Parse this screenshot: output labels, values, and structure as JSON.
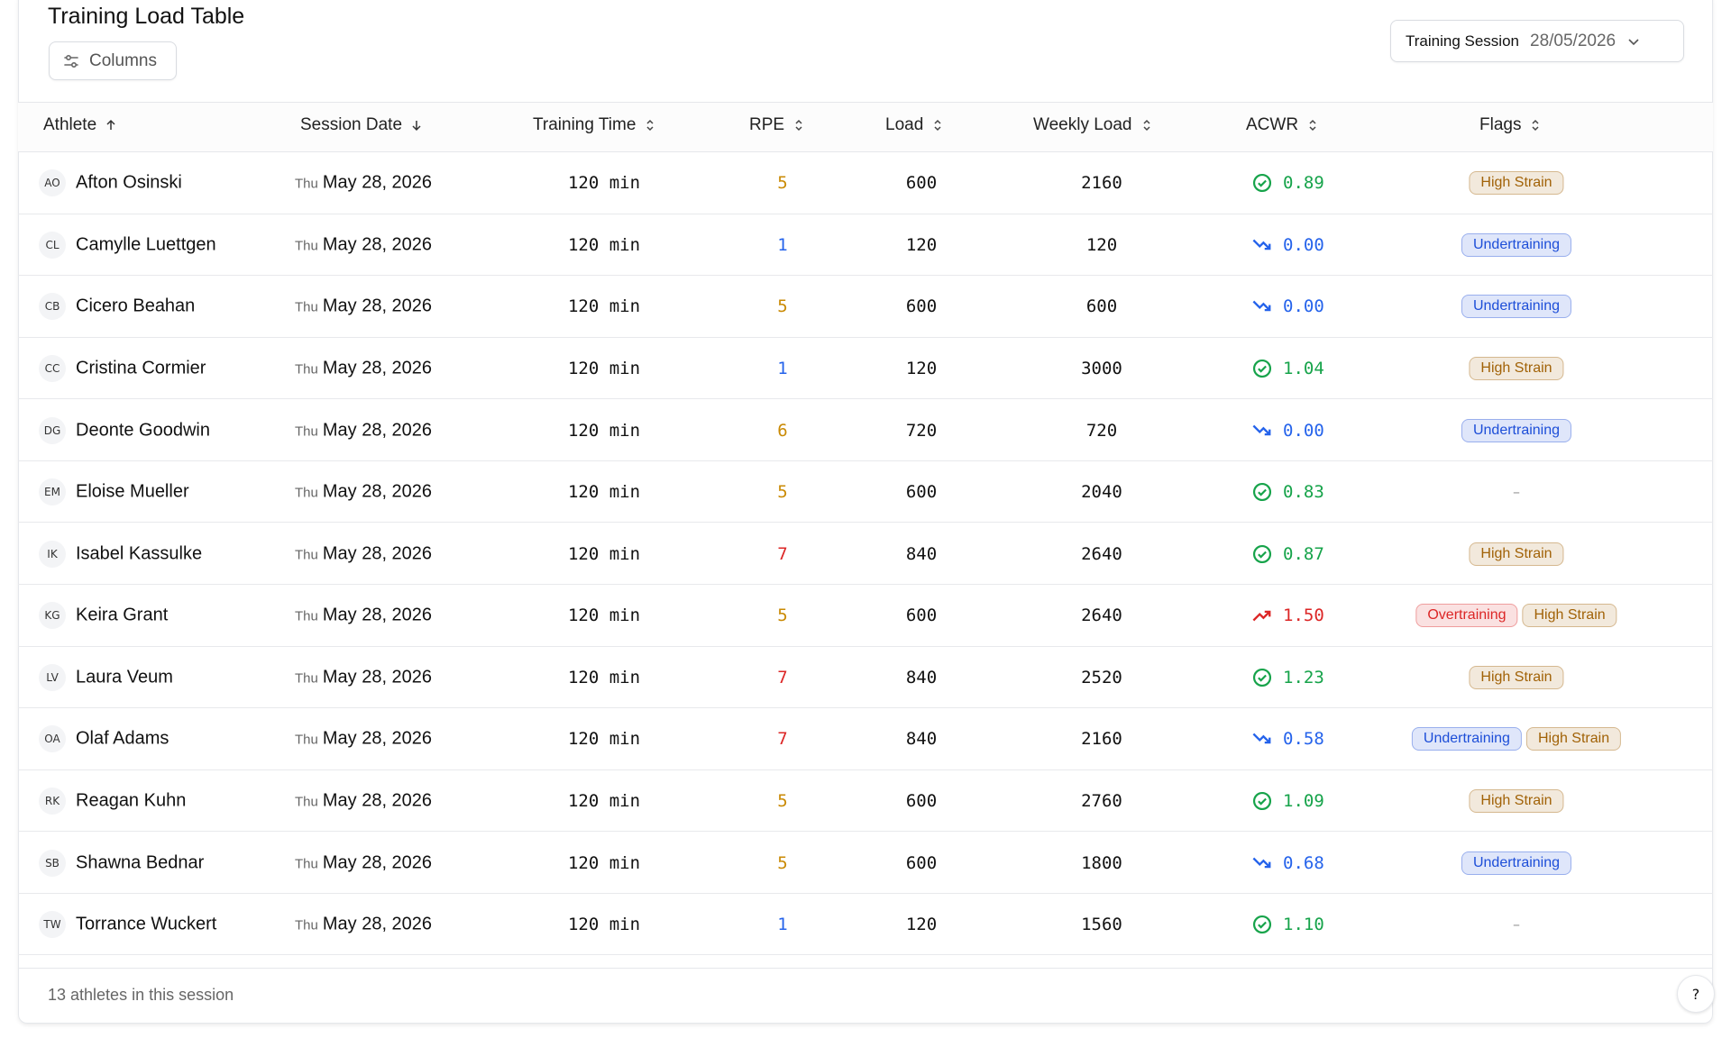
{
  "header": {
    "title": "Training Load Table",
    "columns_button": "Columns",
    "session_label": "Training Session",
    "session_date": "28/05/2026"
  },
  "table": {
    "columns": [
      "Athlete",
      "Session Date",
      "Training Time",
      "RPE",
      "Load",
      "Weekly Load",
      "ACWR",
      "Flags"
    ],
    "empty_flag": "–",
    "rows": [
      {
        "initials": "AO",
        "name": "Afton Osinski",
        "day": "Thu",
        "date": "May 28, 2026",
        "time": "120 min",
        "rpe": 5,
        "rpe_color": "#ca8a04",
        "load": 600,
        "weekly_load": 2160,
        "acwr": "0.89",
        "acwr_icon": "check",
        "acwr_color": "#16a34a",
        "flags": [
          {
            "label": "High Strain",
            "color": "#a16207"
          }
        ]
      },
      {
        "initials": "CL",
        "name": "Camylle Luettgen",
        "day": "Thu",
        "date": "May 28, 2026",
        "time": "120 min",
        "rpe": 1,
        "rpe_color": "#2563eb",
        "load": 120,
        "weekly_load": 120,
        "acwr": "0.00",
        "acwr_icon": "down",
        "acwr_color": "#2563eb",
        "flags": [
          {
            "label": "Undertraining",
            "color": "#1d4ed8"
          }
        ]
      },
      {
        "initials": "CB",
        "name": "Cicero Beahan",
        "day": "Thu",
        "date": "May 28, 2026",
        "time": "120 min",
        "rpe": 5,
        "rpe_color": "#ca8a04",
        "load": 600,
        "weekly_load": 600,
        "acwr": "0.00",
        "acwr_icon": "down",
        "acwr_color": "#2563eb",
        "flags": [
          {
            "label": "Undertraining",
            "color": "#1d4ed8"
          }
        ]
      },
      {
        "initials": "CC",
        "name": "Cristina Cormier",
        "day": "Thu",
        "date": "May 28, 2026",
        "time": "120 min",
        "rpe": 1,
        "rpe_color": "#2563eb",
        "load": 120,
        "weekly_load": 3000,
        "acwr": "1.04",
        "acwr_icon": "check",
        "acwr_color": "#16a34a",
        "flags": [
          {
            "label": "High Strain",
            "color": "#a16207"
          }
        ]
      },
      {
        "initials": "DG",
        "name": "Deonte Goodwin",
        "day": "Thu",
        "date": "May 28, 2026",
        "time": "120 min",
        "rpe": 6,
        "rpe_color": "#ca8a04",
        "load": 720,
        "weekly_load": 720,
        "acwr": "0.00",
        "acwr_icon": "down",
        "acwr_color": "#2563eb",
        "flags": [
          {
            "label": "Undertraining",
            "color": "#1d4ed8"
          }
        ]
      },
      {
        "initials": "EM",
        "name": "Eloise Mueller",
        "day": "Thu",
        "date": "May 28, 2026",
        "time": "120 min",
        "rpe": 5,
        "rpe_color": "#ca8a04",
        "load": 600,
        "weekly_load": 2040,
        "acwr": "0.83",
        "acwr_icon": "check",
        "acwr_color": "#16a34a",
        "flags": []
      },
      {
        "initials": "IK",
        "name": "Isabel Kassulke",
        "day": "Thu",
        "date": "May 28, 2026",
        "time": "120 min",
        "rpe": 7,
        "rpe_color": "#dc2626",
        "load": 840,
        "weekly_load": 2640,
        "acwr": "0.87",
        "acwr_icon": "check",
        "acwr_color": "#16a34a",
        "flags": [
          {
            "label": "High Strain",
            "color": "#a16207"
          }
        ]
      },
      {
        "initials": "KG",
        "name": "Keira Grant",
        "day": "Thu",
        "date": "May 28, 2026",
        "time": "120 min",
        "rpe": 5,
        "rpe_color": "#ca8a04",
        "load": 600,
        "weekly_load": 2640,
        "acwr": "1.50",
        "acwr_icon": "up",
        "acwr_color": "#dc2626",
        "flags": [
          {
            "label": "Overtraining",
            "color": "#dc2626"
          },
          {
            "label": "High Strain",
            "color": "#a16207"
          }
        ]
      },
      {
        "initials": "LV",
        "name": "Laura Veum",
        "day": "Thu",
        "date": "May 28, 2026",
        "time": "120 min",
        "rpe": 7,
        "rpe_color": "#dc2626",
        "load": 840,
        "weekly_load": 2520,
        "acwr": "1.23",
        "acwr_icon": "check",
        "acwr_color": "#16a34a",
        "flags": [
          {
            "label": "High Strain",
            "color": "#a16207"
          }
        ]
      },
      {
        "initials": "OA",
        "name": "Olaf Adams",
        "day": "Thu",
        "date": "May 28, 2026",
        "time": "120 min",
        "rpe": 7,
        "rpe_color": "#dc2626",
        "load": 840,
        "weekly_load": 2160,
        "acwr": "0.58",
        "acwr_icon": "down",
        "acwr_color": "#2563eb",
        "flags": [
          {
            "label": "Undertraining",
            "color": "#1d4ed8"
          },
          {
            "label": "High Strain",
            "color": "#a16207"
          }
        ]
      },
      {
        "initials": "RK",
        "name": "Reagan Kuhn",
        "day": "Thu",
        "date": "May 28, 2026",
        "time": "120 min",
        "rpe": 5,
        "rpe_color": "#ca8a04",
        "load": 600,
        "weekly_load": 2760,
        "acwr": "1.09",
        "acwr_icon": "check",
        "acwr_color": "#16a34a",
        "flags": [
          {
            "label": "High Strain",
            "color": "#a16207"
          }
        ]
      },
      {
        "initials": "SB",
        "name": "Shawna Bednar",
        "day": "Thu",
        "date": "May 28, 2026",
        "time": "120 min",
        "rpe": 5,
        "rpe_color": "#ca8a04",
        "load": 600,
        "weekly_load": 1800,
        "acwr": "0.68",
        "acwr_icon": "down",
        "acwr_color": "#2563eb",
        "flags": [
          {
            "label": "Undertraining",
            "color": "#1d4ed8"
          }
        ]
      },
      {
        "initials": "TW",
        "name": "Torrance Wuckert",
        "day": "Thu",
        "date": "May 28, 2026",
        "time": "120 min",
        "rpe": 1,
        "rpe_color": "#2563eb",
        "load": 120,
        "weekly_load": 1560,
        "acwr": "1.10",
        "acwr_icon": "check",
        "acwr_color": "#16a34a",
        "flags": []
      }
    ]
  },
  "footer": {
    "summary": "13 athletes in this session",
    "help": "?"
  }
}
